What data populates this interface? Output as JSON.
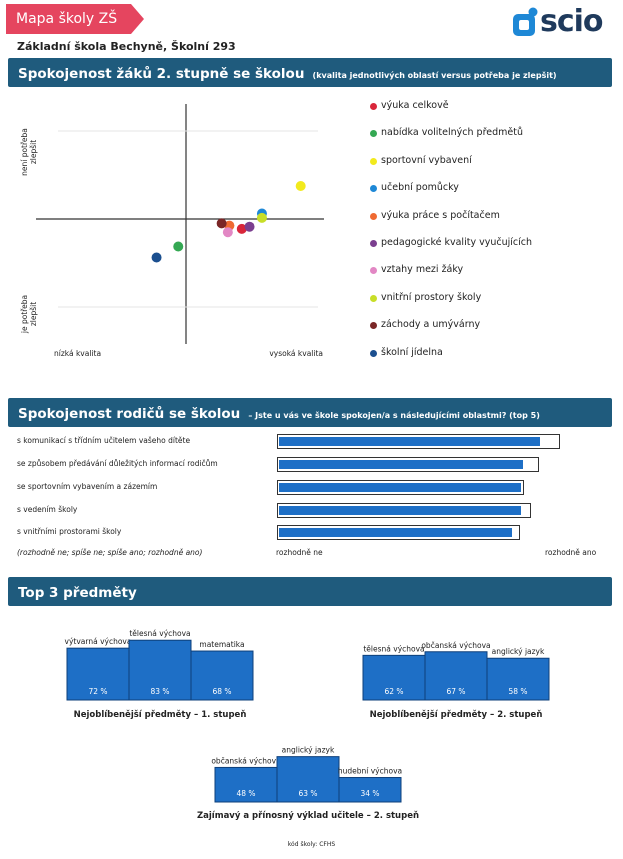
{
  "header": {
    "tag": "Mapa školy ZŠ",
    "logo_text": "scio",
    "school": "Základní škola Bechyně, Školní 293"
  },
  "colors": {
    "brand_red": "#e5455f",
    "bar_blue": "#1f5b7d",
    "value_blue": "#1e6fc6",
    "logo_blue": "#1e88d6"
  },
  "section1": {
    "title": "Spokojenost žáků 2. stupně se školou",
    "subtitle": "(kvalita jednotlivých oblastí versus potřeba je zlepšit)"
  },
  "chart_data": [
    {
      "type": "scatter",
      "xlabel_left": "nízká kvalita",
      "xlabel_right": "vysoká kvalita",
      "ylabel_top": [
        "není potřeba",
        "zlepšit"
      ],
      "ylabel_bottom": [
        "je potřeba",
        "zlepšit"
      ],
      "xlim": [
        -100,
        100
      ],
      "ylim": [
        -100,
        100
      ],
      "series": [
        {
          "name": "výuka celkově",
          "color": "#d9263a",
          "x": 36,
          "y": -9
        },
        {
          "name": "nabídka volitelných předmětů",
          "color": "#34a853",
          "x": -5,
          "y": -25
        },
        {
          "name": "sportovní vybavení",
          "color": "#f2ea1d",
          "x": 74,
          "y": 30
        },
        {
          "name": "učební pomůcky",
          "color": "#1e88d6",
          "x": 49,
          "y": 5
        },
        {
          "name": "výuka práce s počítačem",
          "color": "#ef6a32",
          "x": 28,
          "y": -6
        },
        {
          "name": "pedagogické kvality vyučujících",
          "color": "#7b3f8f",
          "x": 41,
          "y": -7
        },
        {
          "name": "vztahy mezi žáky",
          "color": "#e287c4",
          "x": 27,
          "y": -12
        },
        {
          "name": "vnitřní prostory školy",
          "color": "#c8de28",
          "x": 49,
          "y": 1
        },
        {
          "name": "záchody a umývárny",
          "color": "#7a2626",
          "x": 23,
          "y": -4
        },
        {
          "name": "školní jídelna",
          "color": "#1b4f8f",
          "x": -19,
          "y": -35
        }
      ]
    },
    {
      "type": "bar",
      "orientation": "horizontal",
      "categories": [
        "s komunikací s třídním učitelem vašeho dítěte",
        "se způsobem předávání důležitých informací rodičům",
        "se sportovním vybavením a zázemím",
        "s vedením školy",
        "s vnitřními prostorami školy"
      ],
      "values": [
        0.93,
        0.87,
        0.86,
        0.86,
        0.83
      ],
      "xlabel_left": "rozhodně ne",
      "xlabel_right": "rozhodně ano"
    },
    {
      "type": "bar",
      "title": "Nejoblíbenější předměty – 1. stupeň",
      "categories": [
        "výtvarná výchova",
        "tělesná výchova",
        "matematika"
      ],
      "values": [
        72,
        83,
        68
      ],
      "value_labels": [
        "72 %",
        "83 %",
        "68 %"
      ]
    },
    {
      "type": "bar",
      "title": "Nejoblíbenější předměty – 2. stupeň",
      "categories": [
        "tělesná výchova",
        "občanská výchova",
        "anglický jazyk"
      ],
      "values": [
        62,
        67,
        58
      ],
      "value_labels": [
        "62 %",
        "67 %",
        "58 %"
      ]
    },
    {
      "type": "bar",
      "title": "Zajímavý a přínosný výklad učitele – 2. stupeň",
      "categories": [
        "občanská výchova",
        "anglický jazyk",
        "hudební výchova"
      ],
      "values": [
        48,
        63,
        34
      ],
      "value_labels": [
        "48 %",
        "63 %",
        "34 %"
      ]
    }
  ],
  "section2": {
    "title": "Spokojenost rodičů se školou",
    "subtitle": "– Jste u vás ve škole spokojen/a s následujícími oblastmi? (top 5)",
    "rows": [
      "s komunikací s třídním učitelem vašeho dítěte",
      "se způsobem předávání důležitých informací rodičům",
      "se sportovním vybavením a zázemím",
      "s vedením školy",
      "s vnitřními prostorami školy"
    ],
    "note": "(rozhodně ne; spíše ne; spíše ano; rozhodně ano)",
    "scale_left": "rozhodně ne",
    "scale_right": "rozhodně ano"
  },
  "section3": {
    "title": "Top 3 předměty"
  },
  "footer": "kód školy: CFHS"
}
